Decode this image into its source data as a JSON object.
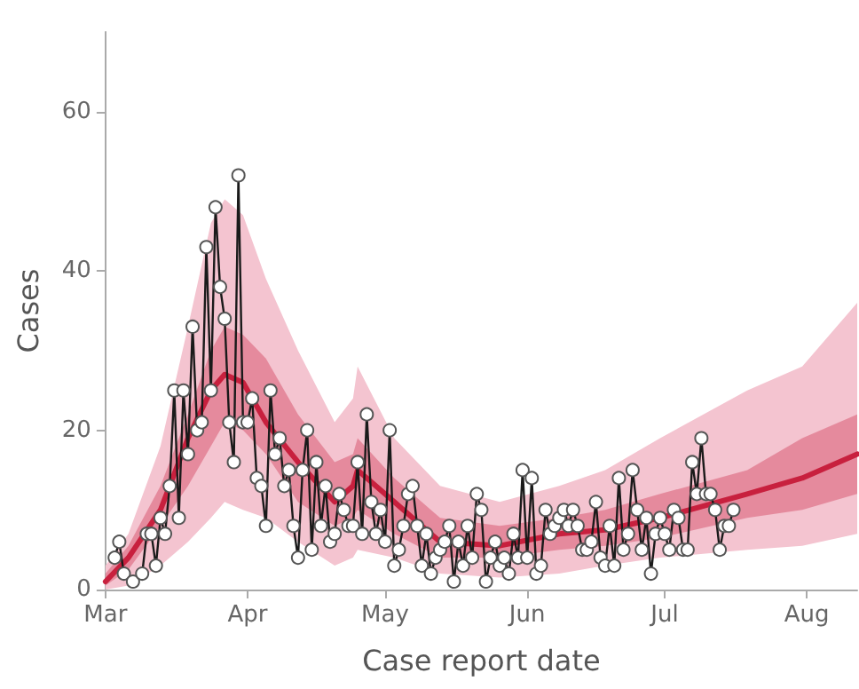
{
  "chart_data": {
    "type": "line",
    "xlabel": "Case report date",
    "ylabel": "Cases",
    "xlim": [
      "--03-01",
      "--08-12"
    ],
    "xticks": [
      {
        "value": "--03-01",
        "label": "Mar"
      },
      {
        "value": "--04-01",
        "label": "Apr"
      },
      {
        "value": "--05-01",
        "label": "May"
      },
      {
        "value": "--06-01",
        "label": "Jun"
      },
      {
        "value": "--07-01",
        "label": "Jul"
      },
      {
        "value": "--08-01",
        "label": "Aug"
      }
    ],
    "ylim": [
      0,
      70
    ],
    "yticks": [
      0,
      20,
      40,
      60
    ],
    "grid": false,
    "series": [
      {
        "color": "#f4c4d0",
        "x": [
          "--03-01",
          "--03-06",
          "--03-13",
          "--03-19",
          "--03-24",
          "--03-27",
          "--03-31",
          "--04-05",
          "--04-12",
          "--04-20",
          "--04-24",
          "--04-25",
          "--05-03",
          "--05-13",
          "--05-26",
          "--06-08",
          "--06-18",
          "--06-30",
          "--07-19",
          "--07-31",
          "--08-12"
        ],
        "values": [
          null,
          null,
          null,
          null,
          null,
          null,
          null,
          null,
          null,
          null,
          null,
          null,
          null,
          null,
          null,
          null,
          null,
          null,
          null,
          null,
          null
        ],
        "lower": [
          0,
          0.5,
          3,
          6,
          9,
          11,
          10,
          9,
          6,
          3,
          4,
          5,
          4,
          2,
          1.5,
          2,
          3,
          4,
          5,
          5.5,
          7
        ],
        "upper": [
          3,
          7,
          18,
          33,
          46,
          49,
          47,
          39,
          30,
          21,
          24,
          28,
          19,
          13,
          11,
          13,
          15,
          19,
          25,
          28,
          36
        ]
      },
      {
        "color": "#c8203e",
        "x": [
          "--03-01",
          "--03-06",
          "--03-13",
          "--03-19",
          "--03-24",
          "--03-27",
          "--03-31",
          "--04-05",
          "--04-12",
          "--04-20",
          "--04-24",
          "--04-25",
          "--05-03",
          "--05-13",
          "--05-26",
          "--06-08",
          "--06-18",
          "--06-30",
          "--07-19",
          "--07-31",
          "--08-12"
        ],
        "values": [
          1,
          4,
          10,
          19,
          25,
          27,
          26,
          21,
          16,
          11,
          13,
          15,
          11,
          6,
          5.5,
          7,
          7.5,
          9,
          12,
          14,
          17
        ],
        "lower": [
          0.5,
          2.5,
          8,
          13,
          18,
          21,
          20,
          17,
          11,
          8,
          9,
          10,
          7,
          4,
          4,
          5,
          5.5,
          6.5,
          9,
          10,
          12
        ],
        "upper": [
          2,
          5.5,
          13,
          22,
          30,
          33,
          32,
          29,
          22,
          16,
          17,
          19,
          14,
          9,
          8,
          9,
          10,
          12,
          15,
          19,
          22
        ]
      },
      {
        "color": "#1a1a1a",
        "marker": "circle",
        "x": [
          "--03-03",
          "--03-04",
          "--03-05",
          "--03-07",
          "--03-09",
          "--03-10",
          "--03-11",
          "--03-12",
          "--03-13",
          "--03-14",
          "--03-15",
          "--03-16",
          "--03-17",
          "--03-18",
          "--03-19",
          "--03-20",
          "--03-21",
          "--03-22",
          "--03-23",
          "--03-24",
          "--03-25",
          "--03-26",
          "--03-27",
          "--03-28",
          "--03-29",
          "--03-30",
          "--03-31",
          "--04-01",
          "--04-02",
          "--04-03",
          "--04-04",
          "--04-05",
          "--04-06",
          "--04-07",
          "--04-08",
          "--04-09",
          "--04-10",
          "--04-11",
          "--04-12",
          "--04-13",
          "--04-14",
          "--04-15",
          "--04-16",
          "--04-17",
          "--04-18",
          "--04-19",
          "--04-20",
          "--04-21",
          "--04-22",
          "--04-23",
          "--04-24",
          "--04-25",
          "--04-26",
          "--04-27",
          "--04-28",
          "--04-29",
          "--04-30",
          "--05-01",
          "--05-02",
          "--05-03",
          "--05-04",
          "--05-05",
          "--05-06",
          "--05-07",
          "--05-08",
          "--05-09",
          "--05-10",
          "--05-11",
          "--05-12",
          "--05-13",
          "--05-14",
          "--05-15",
          "--05-16",
          "--05-17",
          "--05-18",
          "--05-19",
          "--05-20",
          "--05-21",
          "--05-22",
          "--05-23",
          "--05-24",
          "--05-25",
          "--05-26",
          "--05-27",
          "--05-28",
          "--05-29",
          "--05-30",
          "--05-31",
          "--06-01",
          "--06-02",
          "--06-03",
          "--06-04",
          "--06-05",
          "--06-06",
          "--06-07",
          "--06-08",
          "--06-09",
          "--06-10",
          "--06-11",
          "--06-12",
          "--06-13",
          "--06-14",
          "--06-15",
          "--06-16",
          "--06-17",
          "--06-18",
          "--06-19",
          "--06-20",
          "--06-21",
          "--06-22",
          "--06-23",
          "--06-24",
          "--06-25",
          "--06-26",
          "--06-27",
          "--06-28",
          "--06-29",
          "--06-30",
          "--07-01",
          "--07-02",
          "--07-03",
          "--07-04",
          "--07-05",
          "--07-06",
          "--07-07",
          "--07-08",
          "--07-09",
          "--07-10",
          "--07-11",
          "--07-12",
          "--07-13",
          "--07-14",
          "--07-15",
          "--07-16"
        ],
        "values": [
          4,
          6,
          2,
          1,
          2,
          7,
          7,
          3,
          9,
          7,
          13,
          25,
          9,
          25,
          17,
          33,
          20,
          21,
          43,
          25,
          48,
          38,
          34,
          21,
          16,
          52,
          21,
          21,
          24,
          14,
          13,
          8,
          25,
          17,
          19,
          13,
          15,
          8,
          4,
          15,
          20,
          5,
          16,
          8,
          13,
          6,
          7,
          12,
          10,
          8,
          8,
          16,
          7,
          22,
          11,
          7,
          10,
          6,
          20,
          3,
          5,
          8,
          12,
          13,
          8,
          3,
          7,
          2,
          4,
          5,
          6,
          8,
          1,
          6,
          3,
          8,
          4,
          12,
          10,
          1,
          4,
          6,
          3,
          4,
          2,
          7,
          4,
          15,
          4,
          14,
          2,
          3,
          10,
          7,
          8,
          9,
          10,
          8,
          10,
          8,
          5,
          5,
          6,
          11,
          4,
          3,
          8,
          3,
          14,
          5,
          7,
          15,
          10,
          5,
          9,
          2,
          7,
          9,
          7,
          5,
          10,
          9,
          5,
          5,
          16,
          12,
          19,
          12,
          12,
          10,
          5,
          8,
          8,
          10
        ]
      }
    ]
  }
}
